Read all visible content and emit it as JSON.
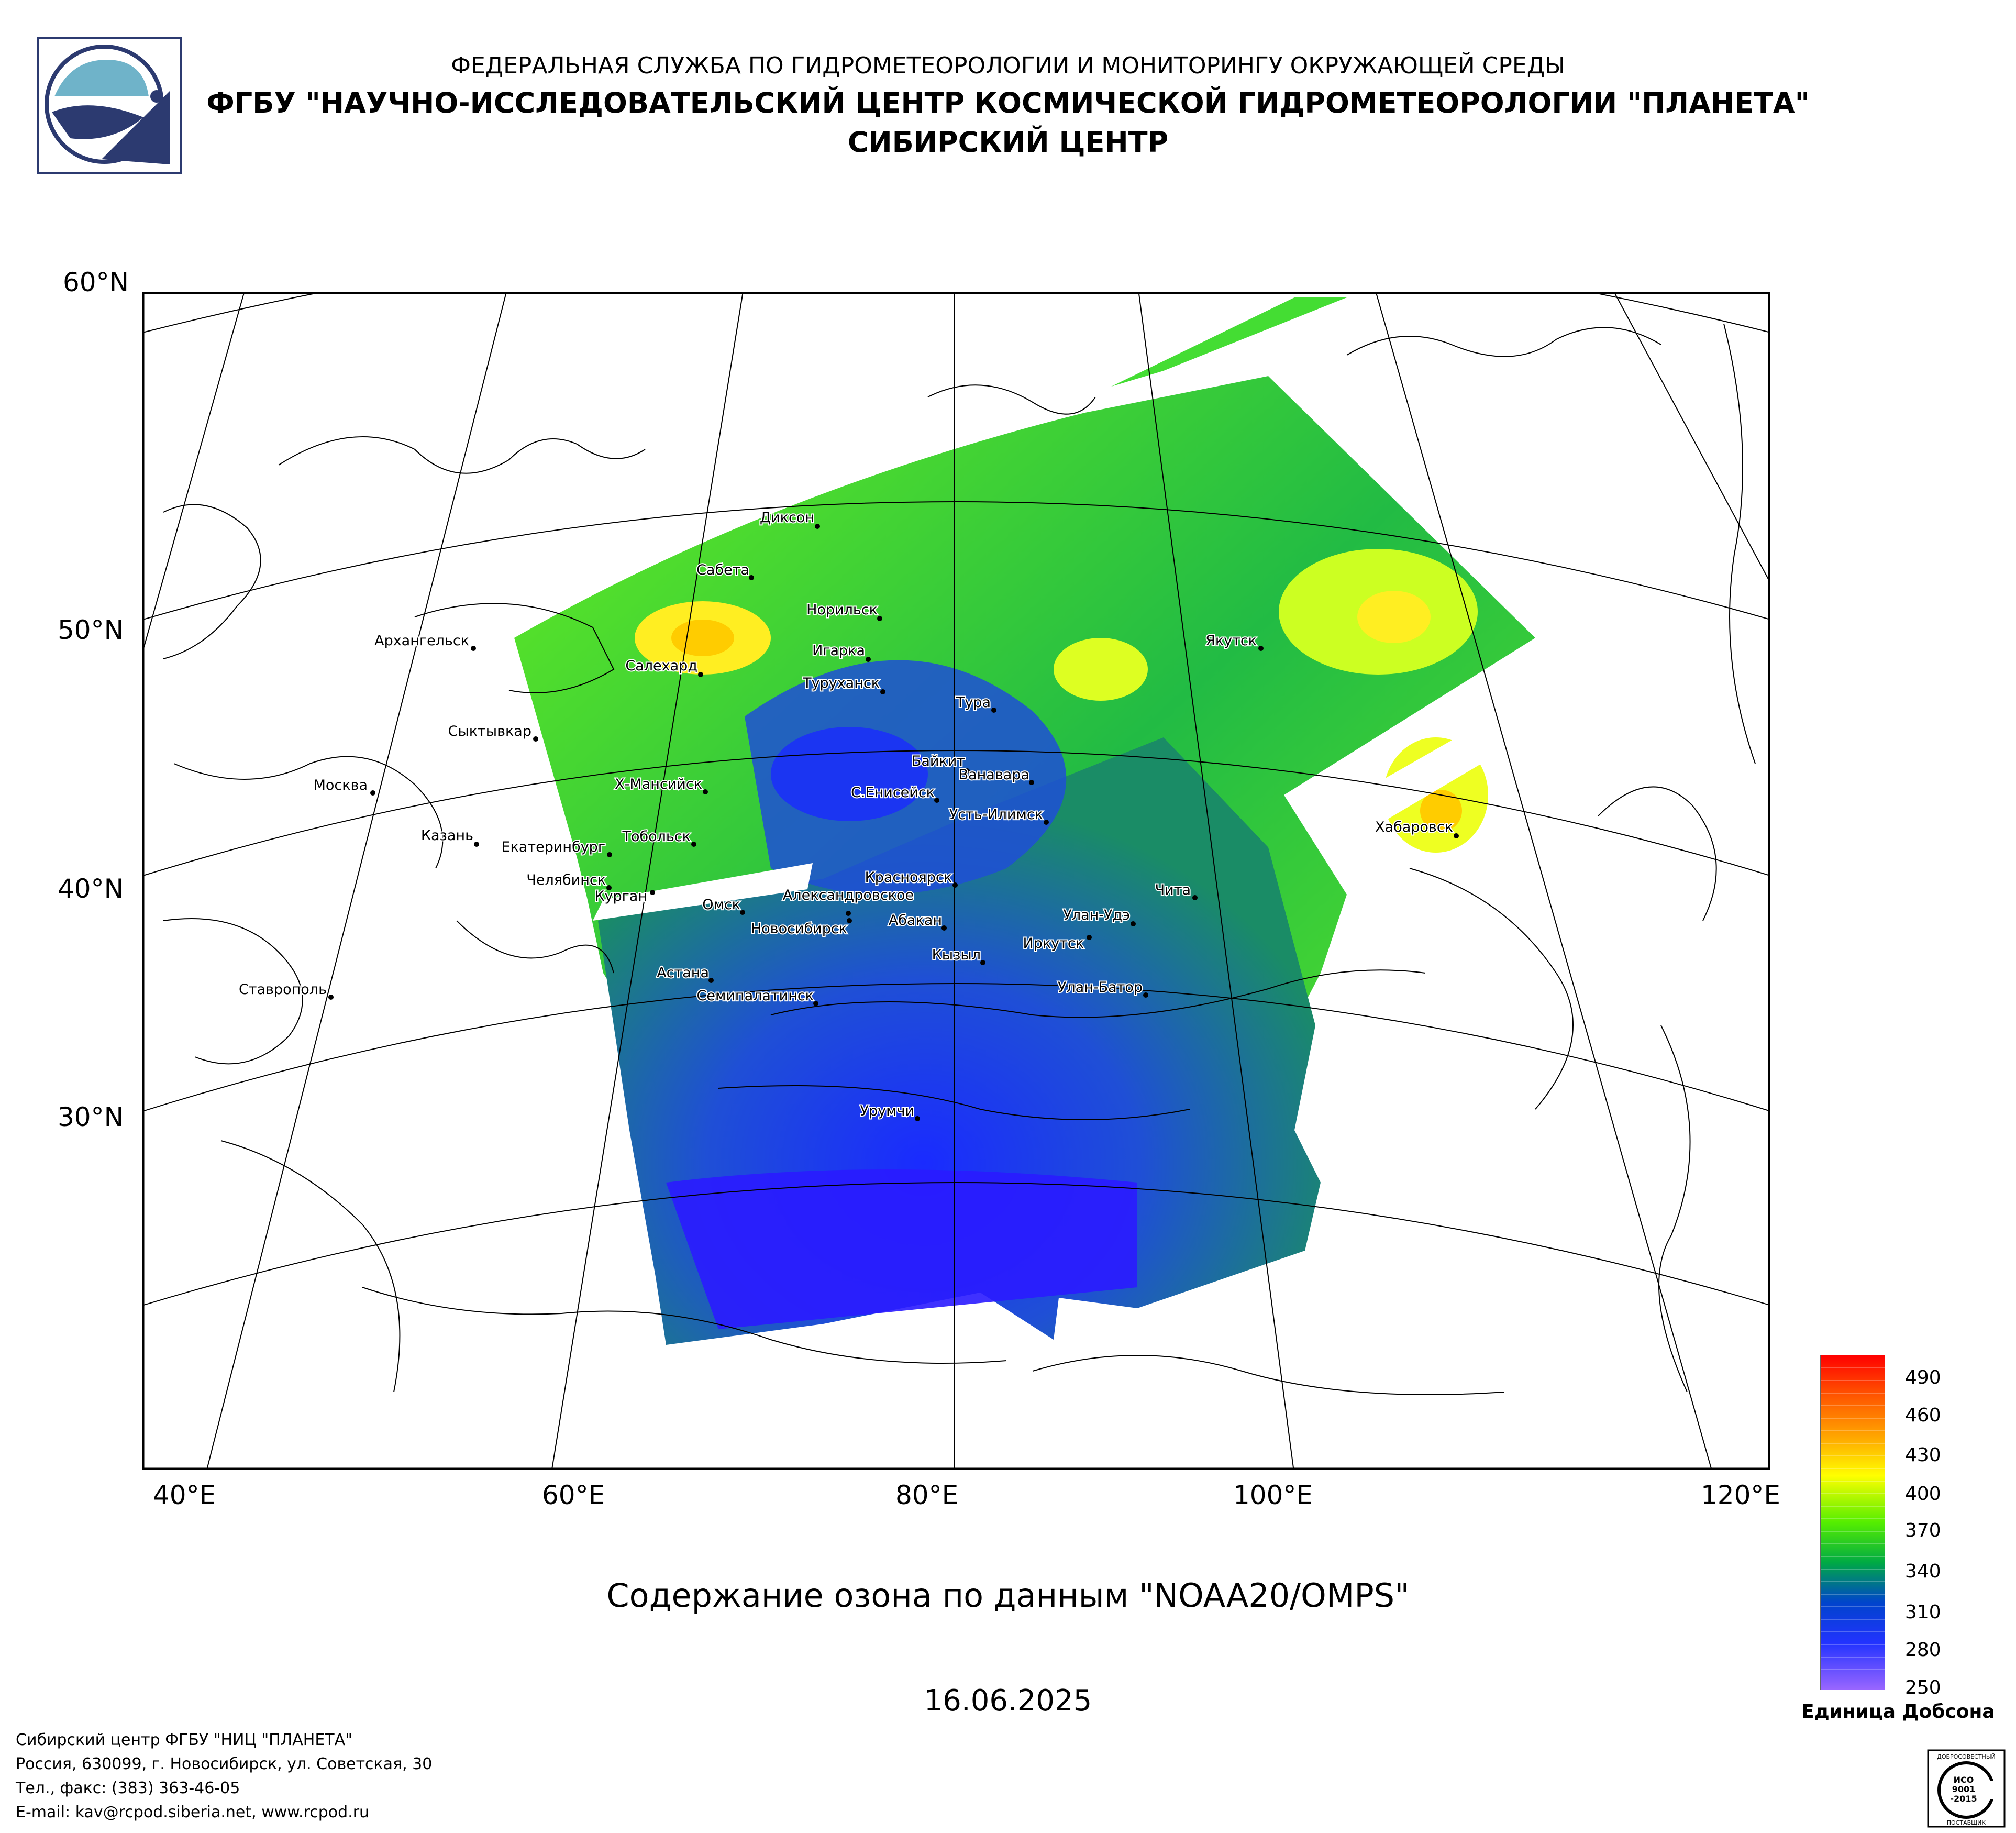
{
  "header": {
    "organization": "ФЕДЕРАЛЬНАЯ СЛУЖБА ПО ГИДРОМЕТЕОРОЛОГИИ И МОНИТОРИНГУ ОКРУЖАЮЩЕЙ СРЕДЫ",
    "institution": "ФГБУ \"НАУЧНО-ИССЛЕДОВАТЕЛЬСКИЙ ЦЕНТР КОСМИЧЕСКОЙ ГИДРОМЕТЕОРОЛОГИИ \"ПЛАНЕТА\"",
    "center": "СИБИРСКИЙ ЦЕНТР"
  },
  "map": {
    "lat_labels": [
      "60°N",
      "50°N",
      "40°N",
      "30°N"
    ],
    "lon_labels": [
      "40°E",
      "60°E",
      "80°E",
      "100°E",
      "120°E"
    ],
    "cities": [
      "Диксон",
      "Сабета",
      "Норильск",
      "Архангельск",
      "Якутск",
      "Игарка",
      "Салехард",
      "Туруханск",
      "Тура",
      "Сыктывкар",
      "Байкит",
      "Ванавара",
      "Х-Мансийск",
      "С.Енисейск",
      "Москва",
      "Усть-Илимск",
      "Казань",
      "Хабаровск",
      "Тобольск",
      "Екатеринбург",
      "Чита",
      "Челябинск",
      "Красноярск",
      "Александровское",
      "Курган",
      "Омск",
      "Улан-Удэ",
      "Новосибирск",
      "Абакан",
      "Иркутск",
      "Кызыл",
      "Астана",
      "Ставрополь",
      "Улан-Батор",
      "Семипалатинск",
      "Урумчи"
    ]
  },
  "caption": "Содержание озона по данным \"NOAA20/OMPS\"",
  "date": "16.06.2025",
  "legend": {
    "ticks": [
      "490",
      "460",
      "430",
      "400",
      "370",
      "340",
      "310",
      "280",
      "250"
    ],
    "unit": "Единица Добсона",
    "colors": [
      "#ff0000",
      "#ff6600",
      "#ffcc00",
      "#ffff00",
      "#66ff00",
      "#00cc33",
      "#006699",
      "#0033ff",
      "#9966ff"
    ]
  },
  "footer": {
    "line1": "Сибирский центр ФГБУ \"НИЦ \"ПЛАНЕТА\"",
    "line2": "Россия, 630099, г. Новосибирск, ул. Советская, 30",
    "line3": "Тел., факс: (383) 363-46-05",
    "line4": "E-mail: kav@rcpod.siberia.net, www.rcpod.ru"
  },
  "iso_badge": {
    "top_text": "ДОБРОСОВЕСТНЫЙ",
    "line1": "ИСО",
    "line2": "9001",
    "line3": "-2015",
    "bottom_text": "ПОСТАВЩИК"
  }
}
